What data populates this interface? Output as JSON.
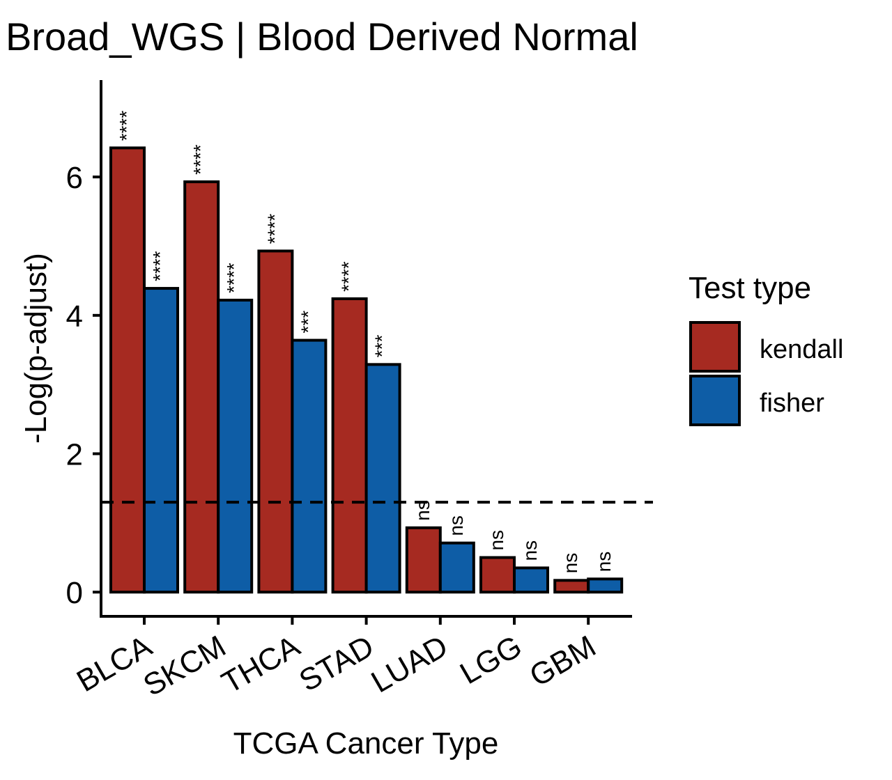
{
  "chart_data": {
    "type": "bar",
    "title": "Broad_WGS | Blood Derived Normal",
    "xlabel": "TCGA Cancer Type",
    "ylabel": "-Log(p-adjust)",
    "categories": [
      "BLCA",
      "SKCM",
      "THCA",
      "STAD",
      "LUAD",
      "LGG",
      "GBM"
    ],
    "series": [
      {
        "name": "kendall",
        "color": "#A62A21",
        "values": [
          6.42,
          5.93,
          4.93,
          4.24,
          0.93,
          0.5,
          0.17
        ],
        "labels": [
          "****",
          "****",
          "****",
          "****",
          "ns",
          "ns",
          "ns"
        ]
      },
      {
        "name": "fisher",
        "color": "#0E5DA6",
        "values": [
          4.39,
          4.22,
          3.64,
          3.29,
          0.71,
          0.35,
          0.19
        ],
        "labels": [
          "****",
          "****",
          "***",
          "***",
          "ns",
          "ns",
          "ns"
        ]
      }
    ],
    "yticks": [
      0,
      2,
      4,
      6
    ],
    "ylim": [
      -0.35,
      7.4
    ],
    "reference_line": {
      "y": 1.3,
      "style": "dashed"
    },
    "legend": {
      "title": "Test type",
      "position": "right"
    },
    "grid": false
  }
}
